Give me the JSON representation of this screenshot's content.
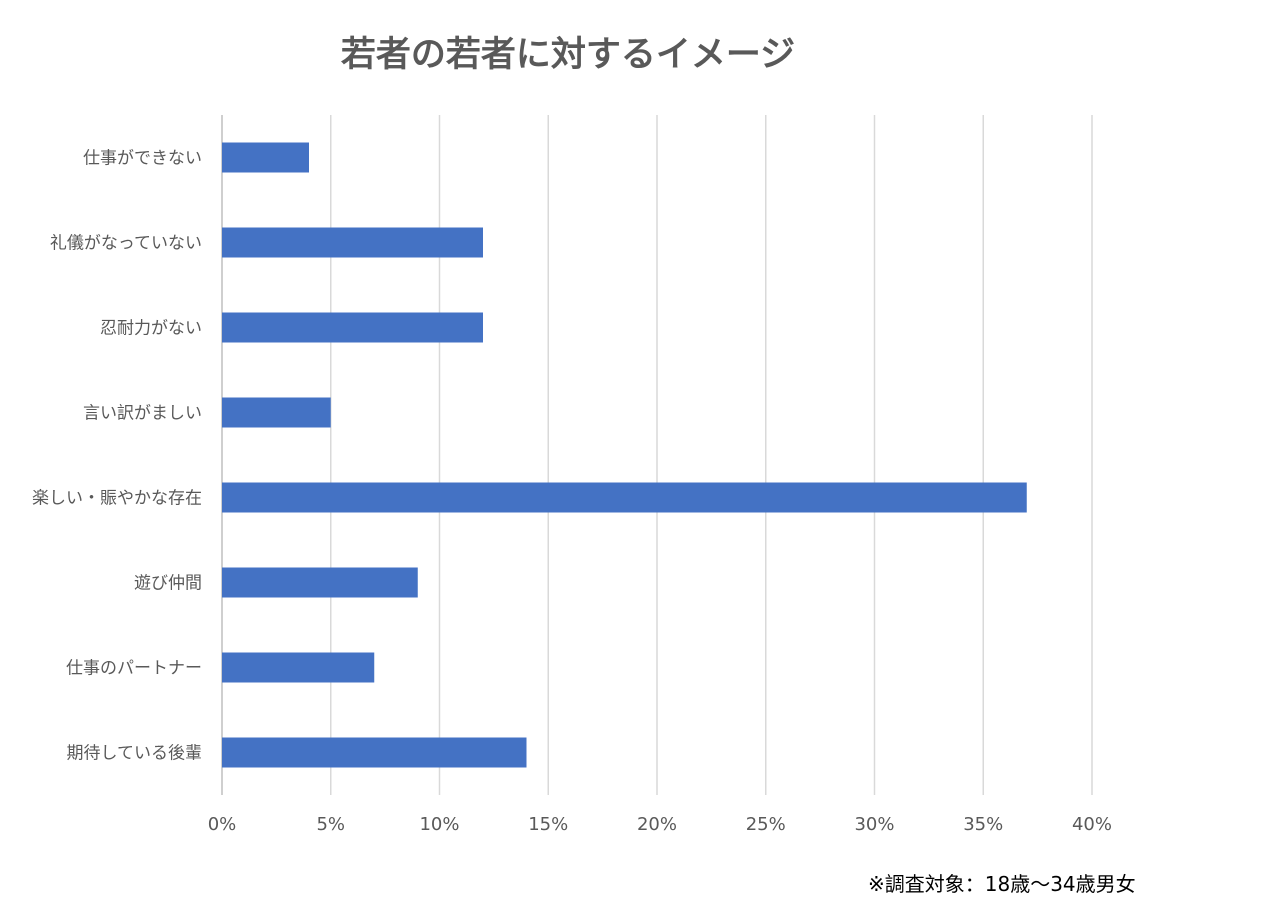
{
  "chart_data": {
    "type": "bar",
    "orientation": "horizontal",
    "title": "若者の若者に対するイメージ",
    "categories": [
      "仕事ができない",
      "礼儀がなっていない",
      "忍耐力がない",
      "言い訳がましい",
      "楽しい・賑やかな存在",
      "遊び仲間",
      "仕事のパートナー",
      "期待している後輩"
    ],
    "values": [
      4,
      12,
      12,
      5,
      37,
      9,
      7,
      14
    ],
    "unit": "%",
    "xlim": [
      0,
      40
    ],
    "x_ticks": [
      "0%",
      "5%",
      "10%",
      "15%",
      "20%",
      "25%",
      "30%",
      "35%",
      "40%"
    ],
    "grid": "vertical",
    "legend": "none",
    "bar_color": "#4472C4",
    "footnote": "※調査対象：18歳～34歳男女"
  }
}
